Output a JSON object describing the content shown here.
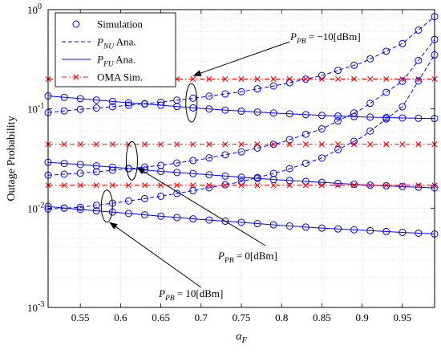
{
  "chart_data": {
    "type": "line",
    "title": "",
    "xlabel": "α",
    "xlabel_sub": "F",
    "ylabel": "Outage Probability",
    "xlim": [
      0.51,
      0.99
    ],
    "ylim": [
      0.001,
      1
    ],
    "yscale": "log",
    "grid": true,
    "legend_position": "top-left",
    "x_ticks": [
      "0.55",
      "0.6",
      "0.65",
      "0.7",
      "0.75",
      "0.8",
      "0.85",
      "0.9",
      "0.95"
    ],
    "x_tick_values": [
      0.55,
      0.6,
      0.65,
      0.7,
      0.75,
      0.8,
      0.85,
      0.9,
      0.95
    ],
    "y_ticks": [
      {
        "value": 0.001,
        "base": "10",
        "exp": "-3"
      },
      {
        "value": 0.01,
        "base": "10",
        "exp": "-2"
      },
      {
        "value": 0.1,
        "base": "10",
        "exp": "-1"
      },
      {
        "value": 1,
        "base": "10",
        "exp": "0"
      }
    ],
    "legend": [
      {
        "label": "Simulation",
        "style": "marker-circle",
        "color": "#0000ff"
      },
      {
        "label_main": "P",
        "label_sub": "NU",
        "label_tail": " Ana.",
        "style": "dashed",
        "color": "#0000ff"
      },
      {
        "label_main": "P",
        "label_sub": "FU",
        "label_tail": " Ana.",
        "style": "solid",
        "color": "#0000ff"
      },
      {
        "label": "OMA Sim.",
        "style": "dashdot-x",
        "color": "#ff0000"
      }
    ],
    "annotations": [
      {
        "main": "P",
        "sub": "PB",
        "text": " = −10[dBm]"
      },
      {
        "main": "P",
        "sub": "PB",
        "text": " = 0[dBm]"
      },
      {
        "main": "P",
        "sub": "PB",
        "text": " = 10[dBm]"
      }
    ],
    "series": [
      {
        "group": "PPB=-10dBm",
        "kind": "NU",
        "x": [
          0.51,
          0.55,
          0.6,
          0.65,
          0.7,
          0.75,
          0.8,
          0.85,
          0.9,
          0.95,
          0.99
        ],
        "y": [
          0.092,
          0.099,
          0.107,
          0.117,
          0.131,
          0.149,
          0.176,
          0.217,
          0.292,
          0.455,
          0.85
        ]
      },
      {
        "group": "PPB=-10dBm",
        "kind": "FU",
        "x": [
          0.51,
          0.55,
          0.6,
          0.65,
          0.7,
          0.75,
          0.8,
          0.85,
          0.9,
          0.95,
          0.99
        ],
        "y": [
          0.135,
          0.127,
          0.117,
          0.109,
          0.101,
          0.095,
          0.09,
          0.086,
          0.083,
          0.081,
          0.08
        ]
      },
      {
        "group": "PPB=-10dBm",
        "kind": "OMA",
        "x": [
          0.51,
          0.55,
          0.6,
          0.65,
          0.7,
          0.75,
          0.8,
          0.85,
          0.9,
          0.95,
          0.99
        ],
        "y": [
          0.2,
          0.2,
          0.2,
          0.2,
          0.2,
          0.2,
          0.2,
          0.2,
          0.2,
          0.2,
          0.2
        ]
      },
      {
        "group": "PPB=0dBm",
        "kind": "NU",
        "x": [
          0.51,
          0.55,
          0.6,
          0.65,
          0.7,
          0.75,
          0.8,
          0.85,
          0.9,
          0.95,
          0.99
        ],
        "y": [
          0.0215,
          0.0225,
          0.0245,
          0.027,
          0.031,
          0.037,
          0.046,
          0.063,
          0.1,
          0.19,
          0.5
        ]
      },
      {
        "group": "PPB=0dBm",
        "kind": "FU",
        "x": [
          0.51,
          0.55,
          0.6,
          0.65,
          0.7,
          0.75,
          0.8,
          0.85,
          0.9,
          0.95,
          0.99
        ],
        "y": [
          0.029,
          0.0275,
          0.0255,
          0.0235,
          0.022,
          0.0205,
          0.0192,
          0.0182,
          0.0172,
          0.0165,
          0.016
        ]
      },
      {
        "group": "PPB=0dBm",
        "kind": "OMA",
        "x": [
          0.51,
          0.55,
          0.6,
          0.65,
          0.7,
          0.75,
          0.8,
          0.85,
          0.9,
          0.95,
          0.99
        ],
        "y": [
          0.044,
          0.044,
          0.044,
          0.044,
          0.044,
          0.044,
          0.044,
          0.044,
          0.044,
          0.044,
          0.044
        ]
      },
      {
        "group": "PPB=10dBm",
        "kind": "NU",
        "x": [
          0.51,
          0.55,
          0.6,
          0.65,
          0.7,
          0.75,
          0.8,
          0.85,
          0.9,
          0.95,
          0.99
        ],
        "y": [
          0.0098,
          0.0102,
          0.0115,
          0.0132,
          0.0155,
          0.0185,
          0.0235,
          0.032,
          0.052,
          0.105,
          0.35
        ]
      },
      {
        "group": "PPB=10dBm",
        "kind": "FU",
        "x": [
          0.51,
          0.55,
          0.6,
          0.65,
          0.7,
          0.75,
          0.8,
          0.85,
          0.9,
          0.95,
          0.99
        ],
        "y": [
          0.0104,
          0.0097,
          0.009,
          0.0083,
          0.0077,
          0.0072,
          0.0067,
          0.0063,
          0.006,
          0.0057,
          0.0055
        ]
      },
      {
        "group": "PPB=10dBm",
        "kind": "OMA",
        "x": [
          0.51,
          0.55,
          0.6,
          0.65,
          0.7,
          0.75,
          0.8,
          0.85,
          0.9,
          0.95,
          0.99
        ],
        "y": [
          0.017,
          0.017,
          0.017,
          0.017,
          0.017,
          0.017,
          0.017,
          0.017,
          0.017,
          0.017,
          0.017
        ]
      }
    ],
    "colors": {
      "analytic": "#0000ff",
      "oma": "#ff0000",
      "grid": "#d4d4d4",
      "axis": "#000000"
    }
  }
}
